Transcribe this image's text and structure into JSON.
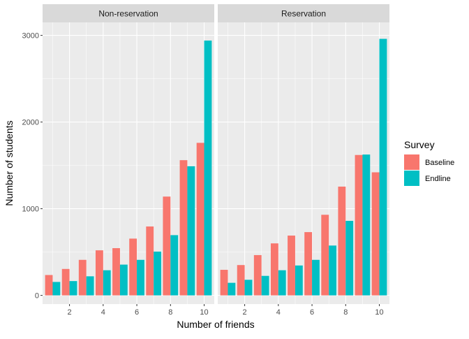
{
  "chart_data": {
    "type": "bar",
    "xlabel": "Number of friends",
    "ylabel": "Number of students",
    "ylim": [
      -100,
      3150
    ],
    "xlim": [
      0.4,
      10.6
    ],
    "y_ticks": [
      0,
      1000,
      2000,
      3000
    ],
    "y_tick_labels": [
      "0",
      "1000",
      "2000",
      "3000"
    ],
    "x_ticks": [
      2,
      4,
      6,
      8,
      10
    ],
    "x_tick_labels": [
      "2",
      "4",
      "6",
      "8",
      "10"
    ],
    "categories": [
      1,
      2,
      3,
      4,
      5,
      6,
      7,
      8,
      9,
      10
    ],
    "panels": [
      {
        "title": "Non-reservation",
        "series": [
          {
            "name": "Baseline",
            "values": [
              235,
              305,
              410,
              520,
              545,
              655,
              795,
              1140,
              1560,
              1760
            ]
          },
          {
            "name": "Endline",
            "values": [
              155,
              165,
              220,
              290,
              355,
              410,
              505,
              695,
              1490,
              2940
            ]
          }
        ]
      },
      {
        "title": "Reservation",
        "series": [
          {
            "name": "Baseline",
            "values": [
              295,
              350,
              465,
              600,
              690,
              730,
              930,
              1255,
              1620,
              1420
            ]
          },
          {
            "name": "Endline",
            "values": [
              145,
              180,
              225,
              290,
              345,
              410,
              575,
              860,
              1625,
              2960
            ]
          }
        ]
      }
    ],
    "legend": {
      "title": "Survey",
      "entries": [
        {
          "name": "Baseline",
          "color": "#F8766D"
        },
        {
          "name": "Endline",
          "color": "#00BFC4"
        }
      ],
      "position": "right"
    },
    "grid": true
  }
}
